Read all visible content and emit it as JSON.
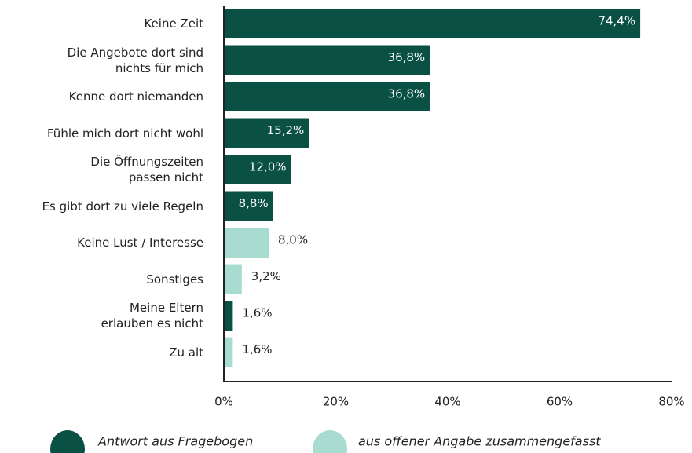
{
  "chart_data": {
    "type": "bar",
    "orientation": "horizontal",
    "categories": [
      "Keine Zeit",
      "Die Angebote dort sind\nnichts für mich",
      "Kenne dort niemanden",
      "Fühle mich dort nicht wohl",
      "Die Öffnungszeiten\npassen nicht",
      "Es gibt dort zu viele Regeln",
      "Keine Lust / Interesse",
      "Sonstiges",
      "Meine Eltern\nerlauben es nicht",
      "Zu alt"
    ],
    "series": [
      {
        "name": "Antwort aus Fragebogen",
        "color": "#0b5045",
        "values": [
          74.4,
          36.8,
          36.8,
          15.2,
          12.0,
          8.8,
          null,
          null,
          1.6,
          null
        ],
        "value_labels": [
          "74,4%",
          "36,8%",
          "36,8%",
          "15,2%",
          "12,0%",
          "8,8%",
          null,
          null,
          "1,6%",
          null
        ]
      },
      {
        "name": "aus offener Angabe zusammengefasst",
        "color": "#a8dcd1",
        "values": [
          null,
          null,
          null,
          null,
          null,
          null,
          8.0,
          3.2,
          null,
          1.6
        ],
        "value_labels": [
          null,
          null,
          null,
          null,
          null,
          null,
          "8,0%",
          "3,2%",
          null,
          "1,6%"
        ]
      }
    ],
    "xlim": [
      0,
      80
    ],
    "xticks": [
      {
        "value": 0,
        "label": "0%"
      },
      {
        "value": 20,
        "label": "20%"
      },
      {
        "value": 40,
        "label": "40%"
      },
      {
        "value": 60,
        "label": "60%"
      },
      {
        "value": 80,
        "label": "80%"
      }
    ],
    "legend": "bottom"
  }
}
